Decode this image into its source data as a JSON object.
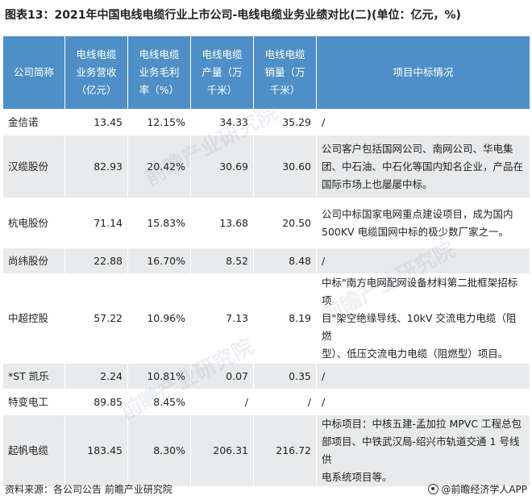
{
  "title": "图表13：2021年中国电线电缆行业上市公司-电线电缆业务业绩对比(二)(单位：亿元，%)",
  "table": {
    "headers": [
      [
        "公司简称"
      ],
      [
        "电线电缆",
        "业务营收",
        "（亿元）"
      ],
      [
        "电线电缆",
        "业务毛利",
        "率（%）"
      ],
      [
        "电线电缆",
        "产量（万",
        "千米）"
      ],
      [
        "电线电缆",
        "销量（万",
        "千米）"
      ],
      [
        "项目中标情况"
      ]
    ],
    "rows": [
      {
        "name": "金信诺",
        "revenue": "13.45",
        "margin": "12.15%",
        "output": "34.33",
        "sales": "35.29",
        "info": [
          "/"
        ]
      },
      {
        "name": "汉缆股份",
        "revenue": "82.93",
        "margin": "20.42%",
        "output": "30.69",
        "sales": "30.60",
        "info": [
          "公司客户包括国网公司、南网公司、华电集",
          "团、中石油、中石化等国内知名企业，产品在",
          "国际市场上也屡屡中标。"
        ]
      },
      {
        "name": "杭电股份",
        "revenue": "71.14",
        "margin": "15.83%",
        "output": "13.68",
        "sales": "20.50",
        "info": [
          "公司中标国家电网重点建设项目，成为国内",
          "500KV 电缆国网中标的极少数厂家之一。"
        ]
      },
      {
        "name": "尚纬股份",
        "revenue": "22.88",
        "margin": "16.70%",
        "output": "8.52",
        "sales": "8.48",
        "info": [
          "/"
        ]
      },
      {
        "name": "中超控股",
        "revenue": "57.22",
        "margin": "10.96%",
        "output": "7.13",
        "sales": "8.19",
        "info": [
          "中标\"南方电网配网设备材料第二批框架招标项",
          "目\"架空绝缘导线、10kV 交流电力电缆（阻燃",
          "型）、低压交流电力电缆（阻燃型）项目。"
        ]
      },
      {
        "name": "*ST 凯乐",
        "revenue": "2.24",
        "margin": "10.81%",
        "output": "0.07",
        "sales": "0.35",
        "info": [
          "/"
        ]
      },
      {
        "name": "特变电工",
        "revenue": "89.85",
        "margin": "8.45%",
        "output": "/",
        "sales": "/",
        "info": [
          "/"
        ]
      },
      {
        "name": "起帆电缆",
        "revenue": "183.45",
        "margin": "8.30%",
        "output": "206.31",
        "sales": "216.72",
        "info": [
          "中标项目：中核五建-孟加拉 MPVC 工程总包",
          "部项目、中铁武汉局-绍兴市轨道交通 1 号线供",
          "电系统项目等。"
        ]
      }
    ]
  },
  "footer": {
    "source": "资料来源：各公司公告 前瞻产业研究院",
    "brand": "@前瞻经济学人APP"
  },
  "watermark": "前瞻产业研究院"
}
